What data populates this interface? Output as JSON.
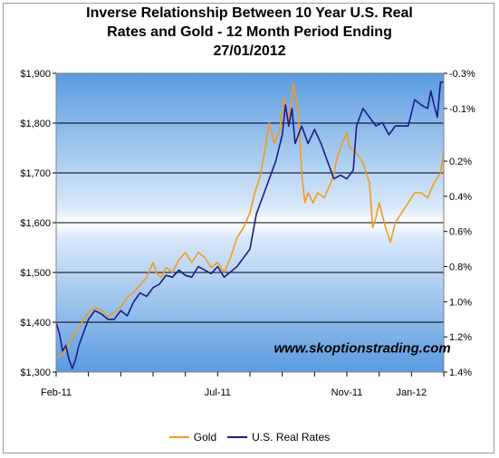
{
  "chart_data": {
    "type": "line",
    "title_lines": [
      "Inverse Relationship Between 10 Year U.S. Real",
      "Rates and Gold - 12 Month Period Ending",
      "27/01/2012"
    ],
    "watermark": "www.skoptionstrading.com",
    "x_tick_labels": [
      "Feb-11",
      "Jul-11",
      "Nov-11",
      "Jan-12"
    ],
    "x_tick_positions_month": [
      0,
      5,
      9,
      11
    ],
    "x_range_month": [
      0,
      12
    ],
    "y_left": {
      "range": [
        1300,
        1900
      ],
      "ticks": [
        1300,
        1400,
        1500,
        1600,
        1700,
        1800,
        1900
      ],
      "tick_labels": [
        "$1,300",
        "$1,400",
        "$1,500",
        "$1,600",
        "$1,700",
        "$1,800",
        "$1,900"
      ]
    },
    "y_right": {
      "inverted": true,
      "range": [
        -0.3,
        1.4
      ],
      "ticks": [
        -0.3,
        -0.1,
        0.2,
        0.4,
        0.6,
        0.8,
        1.0,
        1.2,
        1.4
      ],
      "tick_labels": [
        "-0.3%",
        "-0.1%",
        "0.2%",
        "0.4%",
        "0.6%",
        "0.8%",
        "1.0%",
        "1.2%",
        "1.4%"
      ]
    },
    "grid": "horizontal",
    "legend_position": "bottom",
    "series": [
      {
        "name": "Gold",
        "axis": "left",
        "color": "#F39B1E",
        "points": [
          [
            0,
            1330
          ],
          [
            0.2,
            1335
          ],
          [
            0.35,
            1350
          ],
          [
            0.5,
            1370
          ],
          [
            0.65,
            1385
          ],
          [
            0.8,
            1400
          ],
          [
            1.0,
            1420
          ],
          [
            1.2,
            1430
          ],
          [
            1.4,
            1425
          ],
          [
            1.6,
            1410
          ],
          [
            1.8,
            1420
          ],
          [
            2.0,
            1430
          ],
          [
            2.2,
            1450
          ],
          [
            2.4,
            1460
          ],
          [
            2.6,
            1475
          ],
          [
            2.8,
            1490
          ],
          [
            3.0,
            1520
          ],
          [
            3.1,
            1500
          ],
          [
            3.25,
            1490
          ],
          [
            3.4,
            1510
          ],
          [
            3.6,
            1500
          ],
          [
            3.8,
            1525
          ],
          [
            4.0,
            1540
          ],
          [
            4.2,
            1520
          ],
          [
            4.4,
            1540
          ],
          [
            4.6,
            1530
          ],
          [
            4.8,
            1510
          ],
          [
            5.0,
            1520
          ],
          [
            5.2,
            1500
          ],
          [
            5.4,
            1530
          ],
          [
            5.6,
            1570
          ],
          [
            5.8,
            1590
          ],
          [
            6.0,
            1620
          ],
          [
            6.15,
            1660
          ],
          [
            6.3,
            1690
          ],
          [
            6.45,
            1740
          ],
          [
            6.6,
            1800
          ],
          [
            6.75,
            1760
          ],
          [
            6.9,
            1780
          ],
          [
            7.05,
            1850
          ],
          [
            7.2,
            1800
          ],
          [
            7.35,
            1880
          ],
          [
            7.5,
            1820
          ],
          [
            7.6,
            1700
          ],
          [
            7.7,
            1640
          ],
          [
            7.8,
            1660
          ],
          [
            7.95,
            1640
          ],
          [
            8.1,
            1660
          ],
          [
            8.3,
            1650
          ],
          [
            8.5,
            1680
          ],
          [
            8.6,
            1700
          ],
          [
            8.7,
            1730
          ],
          [
            8.85,
            1760
          ],
          [
            9.0,
            1780
          ],
          [
            9.1,
            1750
          ],
          [
            9.3,
            1740
          ],
          [
            9.5,
            1720
          ],
          [
            9.7,
            1680
          ],
          [
            9.8,
            1590
          ],
          [
            9.9,
            1610
          ],
          [
            10.0,
            1640
          ],
          [
            10.2,
            1590
          ],
          [
            10.35,
            1560
          ],
          [
            10.5,
            1600
          ],
          [
            10.7,
            1620
          ],
          [
            10.9,
            1640
          ],
          [
            11.1,
            1660
          ],
          [
            11.3,
            1660
          ],
          [
            11.5,
            1650
          ],
          [
            11.7,
            1680
          ],
          [
            11.9,
            1700
          ],
          [
            12.0,
            1740
          ]
        ]
      },
      {
        "name": "U.S. Real Rates",
        "axis": "right",
        "color": "#1C1C86",
        "points": [
          [
            0,
            1.12
          ],
          [
            0.1,
            1.18
          ],
          [
            0.2,
            1.28
          ],
          [
            0.3,
            1.25
          ],
          [
            0.4,
            1.33
          ],
          [
            0.5,
            1.38
          ],
          [
            0.6,
            1.33
          ],
          [
            0.7,
            1.25
          ],
          [
            0.8,
            1.2
          ],
          [
            0.9,
            1.15
          ],
          [
            1.0,
            1.1
          ],
          [
            1.2,
            1.05
          ],
          [
            1.4,
            1.07
          ],
          [
            1.6,
            1.1
          ],
          [
            1.8,
            1.1
          ],
          [
            2.0,
            1.05
          ],
          [
            2.2,
            1.08
          ],
          [
            2.4,
            1.0
          ],
          [
            2.6,
            0.95
          ],
          [
            2.8,
            0.97
          ],
          [
            3.0,
            0.92
          ],
          [
            3.2,
            0.9
          ],
          [
            3.4,
            0.85
          ],
          [
            3.6,
            0.86
          ],
          [
            3.8,
            0.82
          ],
          [
            4.0,
            0.85
          ],
          [
            4.2,
            0.86
          ],
          [
            4.4,
            0.8
          ],
          [
            4.6,
            0.82
          ],
          [
            4.8,
            0.84
          ],
          [
            5.0,
            0.8
          ],
          [
            5.2,
            0.86
          ],
          [
            5.4,
            0.83
          ],
          [
            5.6,
            0.8
          ],
          [
            5.8,
            0.75
          ],
          [
            6.0,
            0.7
          ],
          [
            6.2,
            0.5
          ],
          [
            6.4,
            0.4
          ],
          [
            6.6,
            0.3
          ],
          [
            6.8,
            0.2
          ],
          [
            7.0,
            0.05
          ],
          [
            7.1,
            -0.12
          ],
          [
            7.2,
            0.0
          ],
          [
            7.3,
            -0.1
          ],
          [
            7.4,
            0.1
          ],
          [
            7.6,
            0.0
          ],
          [
            7.8,
            0.1
          ],
          [
            8.0,
            0.02
          ],
          [
            8.2,
            0.1
          ],
          [
            8.4,
            0.2
          ],
          [
            8.6,
            0.3
          ],
          [
            8.8,
            0.28
          ],
          [
            9.0,
            0.3
          ],
          [
            9.2,
            0.25
          ],
          [
            9.3,
            0.0
          ],
          [
            9.5,
            -0.1
          ],
          [
            9.7,
            -0.05
          ],
          [
            9.9,
            0.0
          ],
          [
            10.1,
            -0.02
          ],
          [
            10.3,
            0.05
          ],
          [
            10.5,
            0.0
          ],
          [
            10.7,
            0.0
          ],
          [
            10.9,
            0.0
          ],
          [
            11.1,
            -0.15
          ],
          [
            11.3,
            -0.12
          ],
          [
            11.5,
            -0.1
          ],
          [
            11.6,
            -0.2
          ],
          [
            11.7,
            -0.12
          ],
          [
            11.8,
            -0.05
          ],
          [
            11.9,
            -0.25
          ],
          [
            12.0,
            -0.25
          ]
        ]
      }
    ]
  }
}
